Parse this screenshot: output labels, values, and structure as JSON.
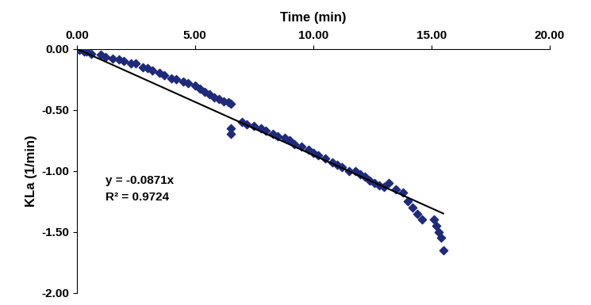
{
  "chart_data": {
    "type": "scatter",
    "x_label": "Time (min)",
    "y_label": "KLa (1/min)",
    "annotations": [
      "y = -0.0871x",
      "R² = 0.9724"
    ],
    "xlim": [
      0,
      20
    ],
    "ylim": [
      -2,
      0
    ],
    "xticks": [
      {
        "value": 0,
        "label": "0.00"
      },
      {
        "value": 5,
        "label": "5.00"
      },
      {
        "value": 10,
        "label": "10.00"
      },
      {
        "value": 15,
        "label": "15.00"
      },
      {
        "value": 20,
        "label": "20.00"
      }
    ],
    "yticks": [
      {
        "value": 0,
        "label": "0.00"
      },
      {
        "value": -0.5,
        "label": "-0.50"
      },
      {
        "value": -1,
        "label": "-1.00"
      },
      {
        "value": -1.5,
        "label": "-1.50"
      },
      {
        "value": -2,
        "label": "-2.00"
      }
    ],
    "series": [
      {
        "type": "scatter",
        "color": "#1f2a7a",
        "marker": "diamond",
        "x": [
          0.0,
          0.1,
          0.2,
          0.3,
          0.4,
          0.6,
          1.0,
          1.2,
          1.5,
          1.8,
          2.0,
          2.3,
          2.5,
          2.8,
          3.0,
          3.2,
          3.5,
          3.7,
          4.0,
          4.2,
          4.5,
          4.7,
          5.0,
          5.2,
          5.4,
          5.6,
          5.8,
          6.0,
          6.2,
          6.4,
          6.5,
          6.5,
          6.5,
          7.0,
          7.2,
          7.5,
          7.8,
          8.0,
          8.3,
          8.5,
          8.8,
          9.0,
          9.2,
          9.5,
          9.8,
          10.0,
          10.2,
          10.5,
          10.8,
          11.0,
          11.2,
          11.5,
          11.8,
          12.0,
          12.2,
          12.4,
          12.6,
          12.8,
          13.0,
          13.2,
          13.5,
          13.8,
          14.0,
          14.2,
          14.4,
          14.6,
          15.1,
          15.2,
          15.3,
          15.4,
          15.5
        ],
        "values": [
          0.0,
          -0.01,
          0.0,
          -0.02,
          -0.02,
          -0.04,
          -0.05,
          -0.07,
          -0.08,
          -0.09,
          -0.1,
          -0.12,
          -0.12,
          -0.15,
          -0.16,
          -0.18,
          -0.2,
          -0.22,
          -0.24,
          -0.25,
          -0.27,
          -0.28,
          -0.3,
          -0.33,
          -0.35,
          -0.37,
          -0.4,
          -0.41,
          -0.43,
          -0.44,
          -0.45,
          -0.65,
          -0.7,
          -0.6,
          -0.62,
          -0.63,
          -0.65,
          -0.67,
          -0.7,
          -0.72,
          -0.73,
          -0.75,
          -0.78,
          -0.8,
          -0.83,
          -0.85,
          -0.87,
          -0.9,
          -0.93,
          -0.95,
          -0.97,
          -1.0,
          -1.0,
          -1.03,
          -1.05,
          -1.08,
          -1.1,
          -1.12,
          -1.13,
          -1.1,
          -1.15,
          -1.18,
          -1.25,
          -1.3,
          -1.35,
          -1.4,
          -1.4,
          -1.45,
          -1.5,
          -1.55,
          -1.65
        ]
      },
      {
        "type": "line",
        "color": "#000000",
        "line_style": "solid",
        "x": [
          0,
          15.5
        ],
        "values": [
          0,
          -1.35
        ]
      }
    ],
    "grid": false
  }
}
